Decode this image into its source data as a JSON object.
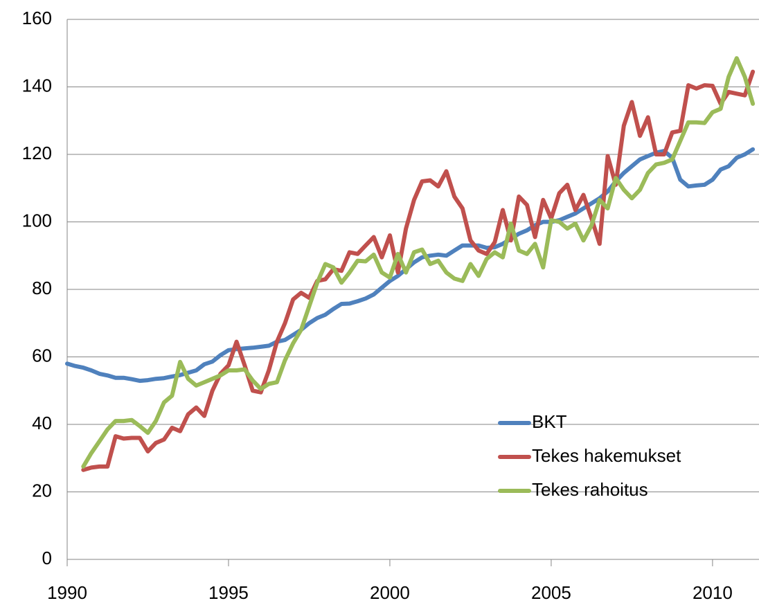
{
  "chart_data": {
    "type": "line",
    "x": [
      1990,
      1990.25,
      1990.5,
      1990.75,
      1991,
      1991.25,
      1991.5,
      1991.75,
      1992,
      1992.25,
      1992.5,
      1992.75,
      1993,
      1993.25,
      1993.5,
      1993.75,
      1994,
      1994.25,
      1994.5,
      1994.75,
      1995,
      1995.25,
      1995.5,
      1995.75,
      1996,
      1996.25,
      1996.5,
      1996.75,
      1997,
      1997.25,
      1997.5,
      1997.75,
      1998,
      1998.25,
      1998.5,
      1998.75,
      1999,
      1999.25,
      1999.5,
      1999.75,
      2000,
      2000.25,
      2000.5,
      2000.75,
      2001,
      2001.25,
      2001.5,
      2001.75,
      2002,
      2002.25,
      2002.5,
      2002.75,
      2003,
      2003.25,
      2003.5,
      2003.75,
      2004,
      2004.25,
      2004.5,
      2004.75,
      2005,
      2005.25,
      2005.5,
      2005.75,
      2006,
      2006.25,
      2006.5,
      2006.75,
      2007,
      2007.25,
      2007.5,
      2007.75,
      2008,
      2008.25,
      2008.5,
      2008.75,
      2009,
      2009.25,
      2009.5,
      2009.75,
      2010,
      2010.25,
      2010.5,
      2010.75,
      2011,
      2011.25
    ],
    "series": [
      {
        "name": "BKT",
        "color": "#4f81bd",
        "values": [
          58,
          57.3,
          56.8,
          56,
          55,
          54.5,
          53.8,
          53.8,
          53.4,
          52.9,
          53.1,
          53.5,
          53.7,
          54.2,
          54.6,
          55.3,
          56,
          57.8,
          58.6,
          60.5,
          62,
          62.3,
          62.5,
          62.7,
          63,
          63.3,
          64.5,
          65,
          66.5,
          68,
          70,
          71.5,
          72.5,
          74.2,
          75.7,
          75.8,
          76.5,
          77.3,
          78.5,
          80.5,
          82.5,
          84,
          86,
          88,
          89.5,
          90,
          90.3,
          90,
          91.5,
          93,
          93,
          93,
          92.3,
          92.5,
          93.5,
          95,
          96.5,
          97.5,
          99,
          100,
          100,
          100.5,
          101.5,
          102.5,
          104,
          105.5,
          107,
          109,
          112,
          114.5,
          116.5,
          118.5,
          119.5,
          120.5,
          121,
          119,
          112.5,
          110.5,
          110.8,
          111,
          112.5,
          115.5,
          116.5,
          119,
          120,
          121.5
        ]
      },
      {
        "name": "Tekes hakemukset",
        "color": "#c0504d",
        "values": [
          null,
          null,
          26.5,
          27.2,
          27.5,
          27.5,
          36.5,
          35.8,
          36,
          36,
          32,
          34.5,
          35.5,
          39,
          38,
          43,
          45,
          42.5,
          50,
          55,
          57.5,
          64.5,
          57.5,
          50,
          49.5,
          56,
          64.5,
          70,
          77,
          79,
          77.5,
          82.5,
          83,
          86,
          85.5,
          91,
          90.5,
          93,
          95.5,
          89.5,
          96,
          85,
          98,
          106.5,
          112,
          112.3,
          110.5,
          115,
          107.5,
          104,
          94.5,
          91.5,
          90.5,
          94,
          103.5,
          94.5,
          107.5,
          105,
          95.5,
          106.5,
          101,
          108.5,
          111,
          103.5,
          108,
          101,
          93.5,
          119.5,
          111,
          128.5,
          135.5,
          125.5,
          131,
          120,
          120,
          126.5,
          127,
          140.5,
          139.5,
          140.5,
          140.3,
          135,
          138.5,
          138,
          137.5,
          144.5
        ]
      },
      {
        "name": "Tekes rahoitus",
        "color": "#9bbb59",
        "values": [
          null,
          null,
          27.5,
          31.5,
          35,
          38.5,
          41,
          41,
          41.3,
          39.5,
          37.5,
          41,
          46.5,
          48.5,
          58.5,
          53.5,
          51.5,
          52.5,
          53.5,
          54.5,
          56,
          56,
          56.3,
          53,
          50.5,
          52,
          52.5,
          59,
          64,
          68,
          75,
          82,
          87.5,
          86.5,
          82,
          85,
          88.5,
          88.3,
          90.3,
          85,
          83.5,
          90.5,
          85,
          91,
          91.8,
          87.5,
          88.5,
          85,
          83.2,
          82.5,
          87.5,
          84,
          89,
          91,
          89.5,
          99.5,
          91.5,
          90.5,
          93.5,
          86.5,
          100.5,
          100,
          98,
          99.5,
          94.5,
          99,
          106.5,
          104,
          113,
          109.5,
          107,
          109.5,
          114.5,
          117,
          117.5,
          118.5,
          124,
          129.5,
          129.5,
          129.3,
          132.5,
          133.5,
          143,
          148.5,
          143,
          135
        ]
      }
    ],
    "xlim": [
      1990,
      2011.44
    ],
    "xticks": [
      1990,
      1995,
      2000,
      2005,
      2010
    ],
    "ylim": [
      0,
      160
    ],
    "yticks": [
      0,
      20,
      40,
      60,
      80,
      100,
      120,
      140,
      160
    ],
    "grid": true
  }
}
